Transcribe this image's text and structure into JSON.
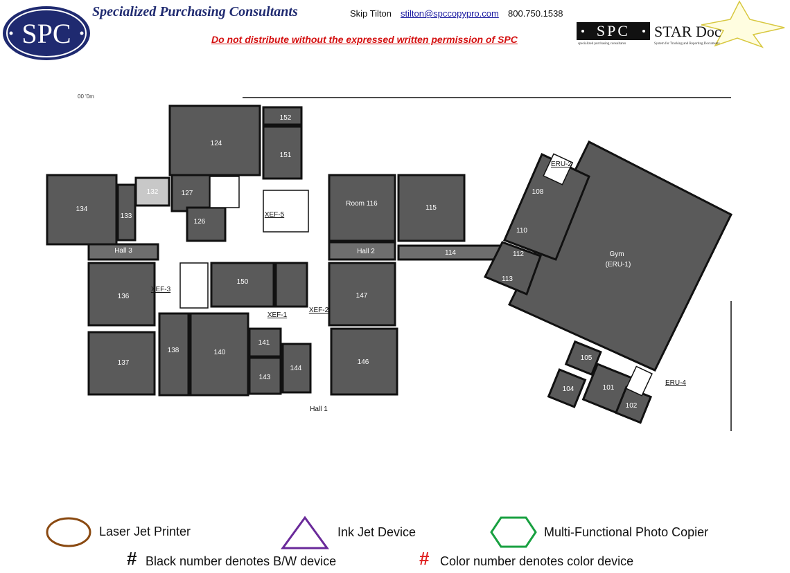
{
  "header": {
    "logo_text": "SPC",
    "company_name": "Specialized Purchasing Consultants",
    "contact_name": "Skip Tilton",
    "contact_email": "stilton@spccopypro.com",
    "contact_phone": "800.750.1538",
    "warning": "Do not distribute without the expressed written permission of SPC",
    "star_logo_text": "SPC",
    "star_doc_title": "STAR Doc",
    "star_doc_subtitle_left": "specialized purchasing consultants",
    "star_doc_subtitle_right": "System for Tracking and Reporting Documents"
  },
  "floorplan": {
    "top_fragment": "00 '0m",
    "rooms": [
      "124",
      "152",
      "151",
      "134",
      "133",
      "132",
      "127",
      "126",
      "XEF-5",
      "Room 116",
      "115",
      "Hall 3",
      "Hall 2",
      "114",
      "136",
      "XEF-3",
      "150",
      "XEF-2",
      "147",
      "XEF-1",
      "137",
      "138",
      "140",
      "141",
      "143",
      "144",
      "146",
      "Hall 1",
      "ERU-2",
      "108",
      "110",
      "112",
      "113",
      "Gym",
      "(ERU-1)",
      "105",
      "104",
      "101",
      "102",
      "ERU-4"
    ]
  },
  "legend": {
    "laser": "Laser Jet Printer",
    "inkjet": "Ink Jet Device",
    "mfp": "Multi-Functional Photo Copier",
    "hash_symbol": "#",
    "bw_note": "Black number denotes B/W device",
    "color_note": "Color number denotes color device",
    "colors": {
      "laser": "#8a4a12",
      "inkjet": "#6a2a9a",
      "mfp": "#18a040",
      "color_hash": "#e02020"
    }
  }
}
